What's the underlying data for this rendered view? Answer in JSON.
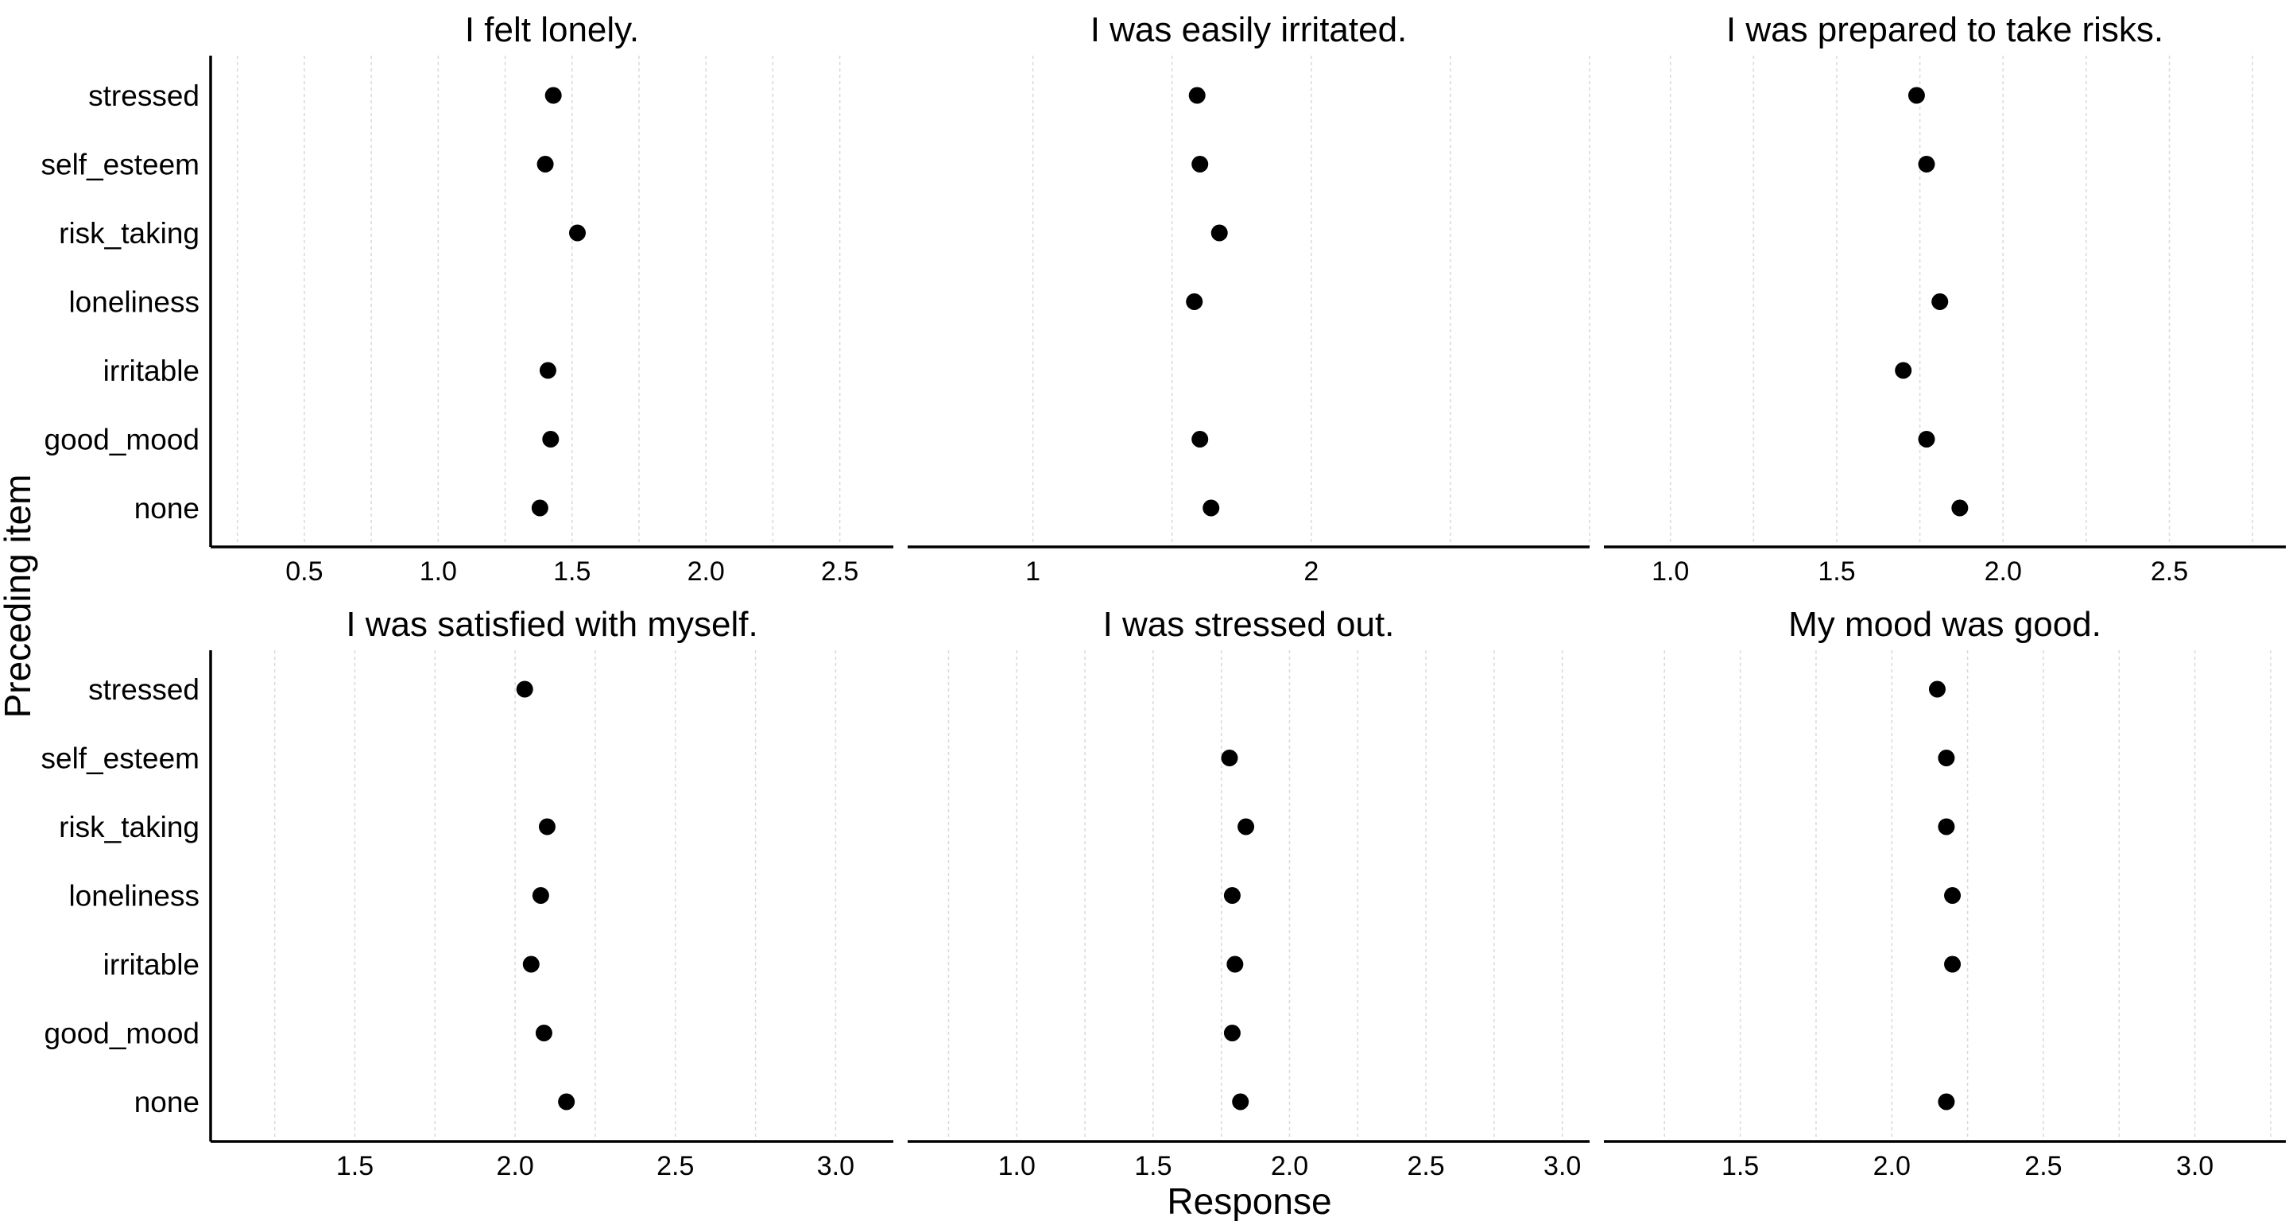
{
  "chart_data": {
    "type": "scatter",
    "xlabel": "Response",
    "ylabel": "Preceding item",
    "categories": [
      "stressed",
      "self_esteem",
      "risk_taking",
      "loneliness",
      "irritable",
      "good_mood",
      "none"
    ],
    "grid": "vertical dashed",
    "legend": "none",
    "panels": [
      {
        "title": "I felt lonely.",
        "xlim": [
          0.15,
          2.7
        ],
        "xticks": [
          "0.5",
          "1.0",
          "1.5",
          "2.0",
          "2.5"
        ],
        "xtick_values": [
          0.5,
          1.0,
          1.5,
          2.0,
          2.5
        ],
        "values": [
          1.43,
          1.4,
          1.52,
          null,
          1.41,
          1.42,
          1.38
        ]
      },
      {
        "title": "I was easily irritated.",
        "xlim": [
          0.55,
          3.0
        ],
        "xticks": [
          "1",
          "2"
        ],
        "xtick_values": [
          1,
          2
        ],
        "values": [
          1.59,
          1.6,
          1.67,
          1.58,
          null,
          1.6,
          1.64
        ]
      },
      {
        "title": "I was prepared to take risks.",
        "xlim": [
          0.8,
          2.85
        ],
        "xticks": [
          "1.0",
          "1.5",
          "2.0",
          "2.5"
        ],
        "xtick_values": [
          1.0,
          1.5,
          2.0,
          2.5
        ],
        "values": [
          1.74,
          1.77,
          null,
          1.81,
          1.7,
          1.77,
          1.87
        ]
      },
      {
        "title": "I was satisfied with myself.",
        "xlim": [
          1.05,
          3.18
        ],
        "xticks": [
          "1.5",
          "2.0",
          "2.5",
          "3.0"
        ],
        "xtick_values": [
          1.5,
          2.0,
          2.5,
          3.0
        ],
        "values": [
          2.03,
          null,
          2.1,
          2.08,
          2.05,
          2.09,
          2.16
        ]
      },
      {
        "title": "I was stressed out.",
        "xlim": [
          0.6,
          3.1
        ],
        "xticks": [
          "1.0",
          "1.5",
          "2.0",
          "2.5",
          "3.0"
        ],
        "xtick_values": [
          1.0,
          1.5,
          2.0,
          2.5,
          3.0
        ],
        "values": [
          null,
          1.78,
          1.84,
          1.79,
          1.8,
          1.79,
          1.82
        ]
      },
      {
        "title": "My mood was good.",
        "xlim": [
          1.05,
          3.3
        ],
        "xticks": [
          "1.5",
          "2.0",
          "2.5",
          "3.0"
        ],
        "xtick_values": [
          1.5,
          2.0,
          2.5,
          3.0
        ],
        "values": [
          2.15,
          2.18,
          2.18,
          2.2,
          2.2,
          null,
          2.18
        ]
      }
    ]
  }
}
